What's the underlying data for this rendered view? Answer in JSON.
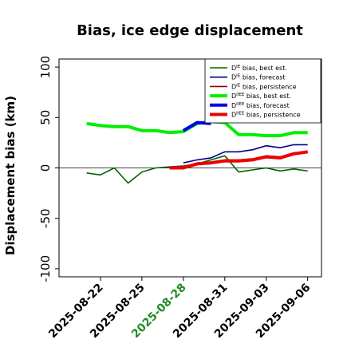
{
  "chart_data": {
    "type": "line",
    "title": "Bias, ice edge displacement",
    "ylabel": "Displacement bias (km)",
    "xlabel": "",
    "ylim": [
      -108,
      108
    ],
    "xlim": [
      "2025-08-19",
      "2025-09-07"
    ],
    "y_ticks": [
      -100,
      -50,
      0,
      50,
      100
    ],
    "x_ticks": [
      {
        "label": "2025-08-22",
        "date": "2025-08-22",
        "color": "#000000"
      },
      {
        "label": "2025-08-25",
        "date": "2025-08-25",
        "color": "#000000"
      },
      {
        "label": "2025-08-28",
        "date": "2025-08-28",
        "color": "#228B22"
      },
      {
        "label": "2025-08-31",
        "date": "2025-08-31",
        "color": "#000000"
      },
      {
        "label": "2025-09-03",
        "date": "2025-09-03",
        "color": "#000000"
      },
      {
        "label": "2025-09-06",
        "date": "2025-09-06",
        "color": "#000000"
      }
    ],
    "zero_line": true,
    "grid": false,
    "legend_position": "top-right",
    "series": [
      {
        "name": "bias, best est.",
        "sup": "IE",
        "color": "#006400",
        "width": 1.6,
        "points": [
          [
            "2025-08-21",
            -5
          ],
          [
            "2025-08-22",
            -7
          ],
          [
            "2025-08-23",
            0
          ],
          [
            "2025-08-24",
            -15
          ],
          [
            "2025-08-25",
            -4
          ],
          [
            "2025-08-26",
            0
          ],
          [
            "2025-08-27",
            1
          ],
          [
            "2025-08-28",
            2
          ],
          [
            "2025-08-29",
            4
          ],
          [
            "2025-08-30",
            8
          ],
          [
            "2025-08-31",
            12
          ],
          [
            "2025-09-01",
            -4
          ],
          [
            "2025-09-02",
            -2
          ],
          [
            "2025-09-03",
            0
          ],
          [
            "2025-09-04",
            -3
          ],
          [
            "2025-09-05",
            -1
          ],
          [
            "2025-09-06",
            -3
          ]
        ]
      },
      {
        "name": "bias, forecast",
        "sup": "IE",
        "color": "#00008B",
        "width": 1.6,
        "points": [
          [
            "2025-08-28",
            5
          ],
          [
            "2025-08-29",
            8
          ],
          [
            "2025-08-30",
            10
          ],
          [
            "2025-08-31",
            16
          ],
          [
            "2025-09-01",
            16
          ],
          [
            "2025-09-02",
            18
          ],
          [
            "2025-09-03",
            22
          ],
          [
            "2025-09-04",
            20
          ],
          [
            "2025-09-05",
            23
          ],
          [
            "2025-09-06",
            23
          ]
        ]
      },
      {
        "name": "bias, persistence",
        "sup": "IE",
        "color": "#8B0000",
        "width": 1.6,
        "points": [
          [
            "2025-08-27",
            1
          ],
          [
            "2025-08-28",
            1
          ],
          [
            "2025-08-29",
            5
          ],
          [
            "2025-08-30",
            6
          ],
          [
            "2025-08-31",
            8
          ],
          [
            "2025-09-01",
            8
          ],
          [
            "2025-09-02",
            9
          ],
          [
            "2025-09-03",
            12
          ],
          [
            "2025-09-04",
            11
          ],
          [
            "2025-09-05",
            15
          ],
          [
            "2025-09-06",
            16
          ]
        ]
      },
      {
        "name": "bias, best est.",
        "sup": "IIEE",
        "color": "#00EE00",
        "width": 4,
        "points": [
          [
            "2025-08-21",
            44
          ],
          [
            "2025-08-22",
            42
          ],
          [
            "2025-08-23",
            41
          ],
          [
            "2025-08-24",
            41
          ],
          [
            "2025-08-25",
            37
          ],
          [
            "2025-08-26",
            37
          ],
          [
            "2025-08-27",
            35
          ],
          [
            "2025-08-28",
            36
          ],
          [
            "2025-08-29",
            44
          ],
          [
            "2025-08-30",
            46
          ],
          [
            "2025-08-31",
            45
          ],
          [
            "2025-09-01",
            33
          ],
          [
            "2025-09-02",
            33
          ],
          [
            "2025-09-03",
            32
          ],
          [
            "2025-09-04",
            32
          ],
          [
            "2025-09-05",
            35
          ],
          [
            "2025-09-06",
            35
          ]
        ]
      },
      {
        "name": "bias, forecast",
        "sup": "IIEE",
        "color": "#0000EE",
        "width": 4,
        "points": [
          [
            "2025-08-28",
            37
          ],
          [
            "2025-08-29",
            45
          ],
          [
            "2025-08-30",
            44
          ]
        ]
      },
      {
        "name": "bias, persistence",
        "sup": "IIEE",
        "color": "#EE0000",
        "width": 4,
        "points": [
          [
            "2025-08-27",
            0
          ],
          [
            "2025-08-28",
            0
          ],
          [
            "2025-08-29",
            4
          ],
          [
            "2025-08-30",
            5
          ],
          [
            "2025-08-31",
            7
          ],
          [
            "2025-09-01",
            7
          ],
          [
            "2025-09-02",
            8
          ],
          [
            "2025-09-03",
            11
          ],
          [
            "2025-09-04",
            10
          ],
          [
            "2025-09-05",
            14
          ],
          [
            "2025-09-06",
            16
          ]
        ]
      }
    ]
  }
}
